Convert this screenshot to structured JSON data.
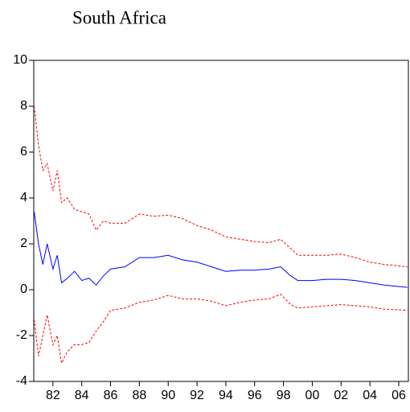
{
  "chart_data": {
    "type": "line",
    "title": "South Africa",
    "x": [
      1980.7,
      1981,
      1981.3,
      1981.6,
      1982,
      1982.3,
      1982.6,
      1983,
      1983.5,
      1984,
      1984.5,
      1985,
      1985.5,
      1986,
      1987,
      1988,
      1989,
      1990,
      1991,
      1992,
      1993,
      1994,
      1995,
      1996,
      1997,
      1997.8,
      1998.5,
      1999,
      2000,
      2001,
      2002,
      2003,
      2004,
      2005,
      2006.6
    ],
    "series": [
      {
        "color": "#0000ff",
        "dashed": false,
        "values": [
          3.4,
          2.0,
          1.1,
          2.0,
          0.9,
          1.5,
          0.3,
          0.5,
          0.8,
          0.4,
          0.5,
          0.2,
          0.6,
          0.9,
          1.0,
          1.4,
          1.4,
          1.5,
          1.3,
          1.2,
          1.0,
          0.8,
          0.85,
          0.85,
          0.9,
          1.0,
          0.6,
          0.4,
          0.4,
          0.45,
          0.45,
          0.4,
          0.3,
          0.2,
          0.1
        ]
      },
      {
        "color": "#ff0000",
        "dashed": true,
        "values": [
          8.0,
          6.3,
          5.2,
          5.5,
          4.3,
          5.2,
          3.8,
          4.0,
          3.5,
          3.4,
          3.3,
          2.6,
          3.0,
          2.9,
          2.9,
          3.3,
          3.2,
          3.25,
          3.1,
          2.8,
          2.6,
          2.3,
          2.2,
          2.1,
          2.05,
          2.2,
          1.8,
          1.5,
          1.5,
          1.5,
          1.55,
          1.4,
          1.2,
          1.1,
          1.0
        ]
      },
      {
        "color": "#ff0000",
        "dashed": true,
        "values": [
          -1.3,
          -2.9,
          -2.0,
          -1.1,
          -2.4,
          -2.0,
          -3.2,
          -2.7,
          -2.4,
          -2.4,
          -2.3,
          -1.8,
          -1.4,
          -0.9,
          -0.8,
          -0.55,
          -0.45,
          -0.25,
          -0.4,
          -0.4,
          -0.5,
          -0.7,
          -0.55,
          -0.45,
          -0.4,
          -0.2,
          -0.65,
          -0.8,
          -0.75,
          -0.7,
          -0.65,
          -0.7,
          -0.75,
          -0.85,
          -0.9
        ]
      }
    ],
    "xlim": [
      1980.67,
      2006.67
    ],
    "xticks": [
      {
        "value": 1982,
        "label": "82"
      },
      {
        "value": 1984,
        "label": "84"
      },
      {
        "value": 1986,
        "label": "86"
      },
      {
        "value": 1988,
        "label": "88"
      },
      {
        "value": 1990,
        "label": "90"
      },
      {
        "value": 1992,
        "label": "92"
      },
      {
        "value": 1994,
        "label": "94"
      },
      {
        "value": 1996,
        "label": "96"
      },
      {
        "value": 1998,
        "label": "98"
      },
      {
        "value": 2000,
        "label": "00"
      },
      {
        "value": 2002,
        "label": "02"
      },
      {
        "value": 2004,
        "label": "04"
      },
      {
        "value": 2006,
        "label": "06"
      }
    ],
    "ylim": [
      -4,
      10
    ],
    "yticks": [
      -4,
      -2,
      0,
      2,
      4,
      6,
      8,
      10
    ]
  }
}
